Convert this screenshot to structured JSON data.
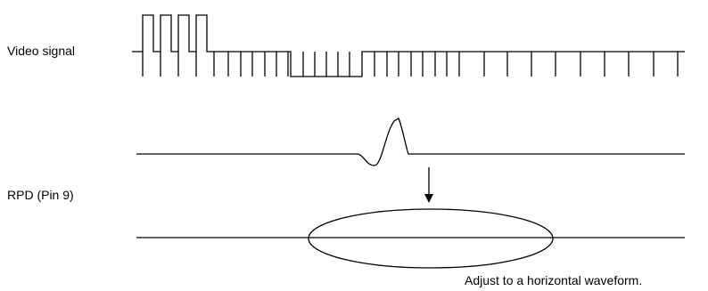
{
  "labels": {
    "video_signal": "Video signal",
    "rpd": "RPD (Pin 9)",
    "note": "Adjust to a horizontal waveform."
  },
  "colors": {
    "stroke": "#000000",
    "background": "#ffffff"
  }
}
